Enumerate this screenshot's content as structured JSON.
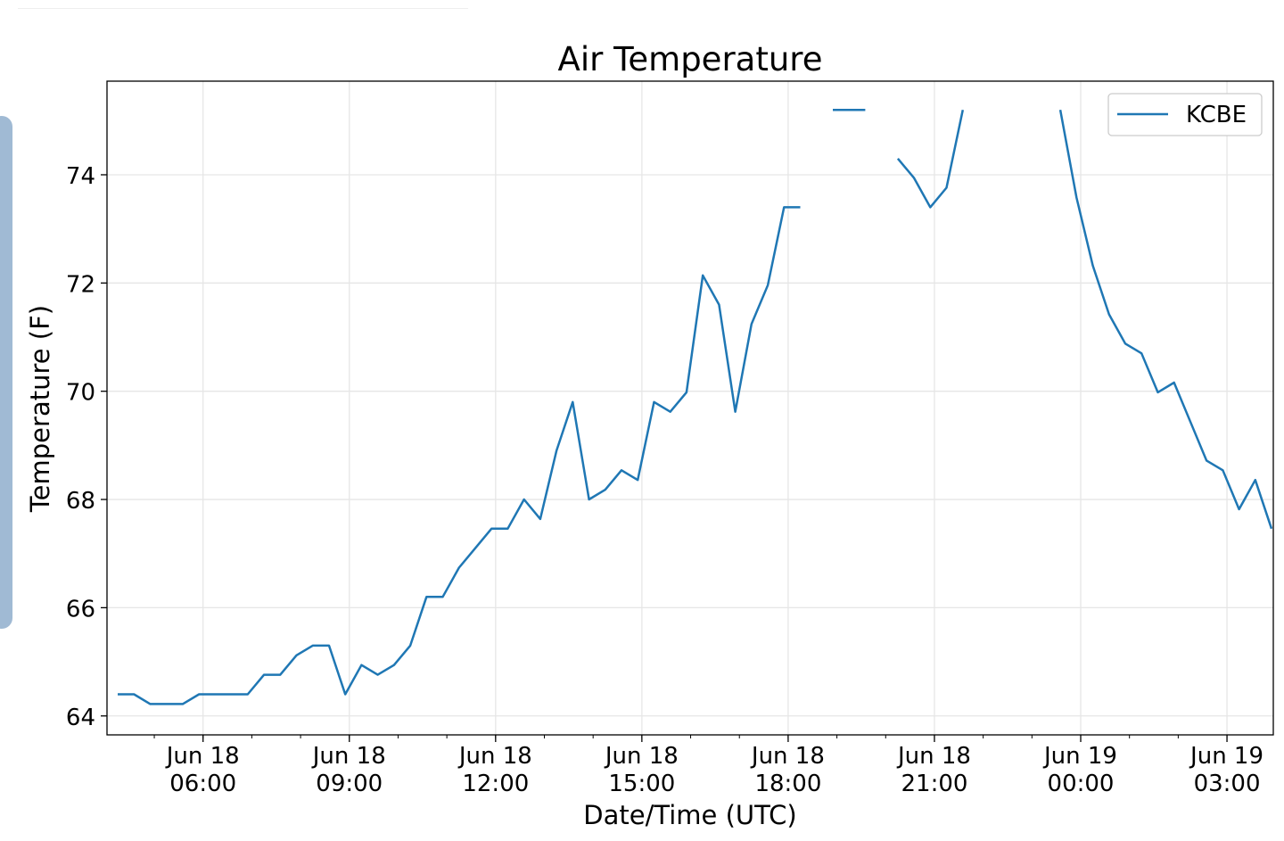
{
  "chart_data": {
    "type": "line",
    "title": "Air Temperature",
    "xlabel": "Date/Time (UTC)",
    "ylabel": "Temperature (F)",
    "x_unit": "hours since Jun 18 00:00 UTC",
    "xlim": [
      4.03,
      27.95
    ],
    "ylim": [
      63.65,
      75.73
    ],
    "grid": true,
    "legend_position": "top-right",
    "y_ticks": [
      64,
      66,
      68,
      70,
      72,
      74
    ],
    "x_ticks": [
      {
        "hour": 6,
        "label1": "Jun 18",
        "label2": "06:00"
      },
      {
        "hour": 9,
        "label1": "Jun 18",
        "label2": "09:00"
      },
      {
        "hour": 12,
        "label1": "Jun 18",
        "label2": "12:00"
      },
      {
        "hour": 15,
        "label1": "Jun 18",
        "label2": "15:00"
      },
      {
        "hour": 18,
        "label1": "Jun 18",
        "label2": "18:00"
      },
      {
        "hour": 21,
        "label1": "Jun 18",
        "label2": "21:00"
      },
      {
        "hour": 24,
        "label1": "Jun 19",
        "label2": "00:00"
      },
      {
        "hour": 27,
        "label1": "Jun 19",
        "label2": "03:00"
      }
    ],
    "series": [
      {
        "name": "KCBE",
        "color": "#1f77b4",
        "x_start_hour": 4.25,
        "x_step_hours": 0.3333,
        "values": [
          64.4,
          64.4,
          64.22,
          64.22,
          64.22,
          64.4,
          64.4,
          64.4,
          64.4,
          64.76,
          64.76,
          65.12,
          65.3,
          65.3,
          64.4,
          64.94,
          64.76,
          64.94,
          65.3,
          66.2,
          66.2,
          66.74,
          67.1,
          67.46,
          67.46,
          68.0,
          67.64,
          68.9,
          69.8,
          68.0,
          68.18,
          68.54,
          68.36,
          69.8,
          69.62,
          69.98,
          72.14,
          71.6,
          69.62,
          71.24,
          71.96,
          73.4,
          73.4,
          null,
          75.2,
          75.2,
          75.2,
          null,
          74.3,
          73.94,
          73.4,
          73.76,
          75.2,
          null,
          null,
          null,
          null,
          null,
          75.2,
          73.58,
          72.32,
          71.42,
          70.88,
          70.7,
          69.98,
          70.16,
          69.44,
          68.72,
          68.54,
          67.82,
          68.36,
          67.46
        ]
      }
    ]
  }
}
